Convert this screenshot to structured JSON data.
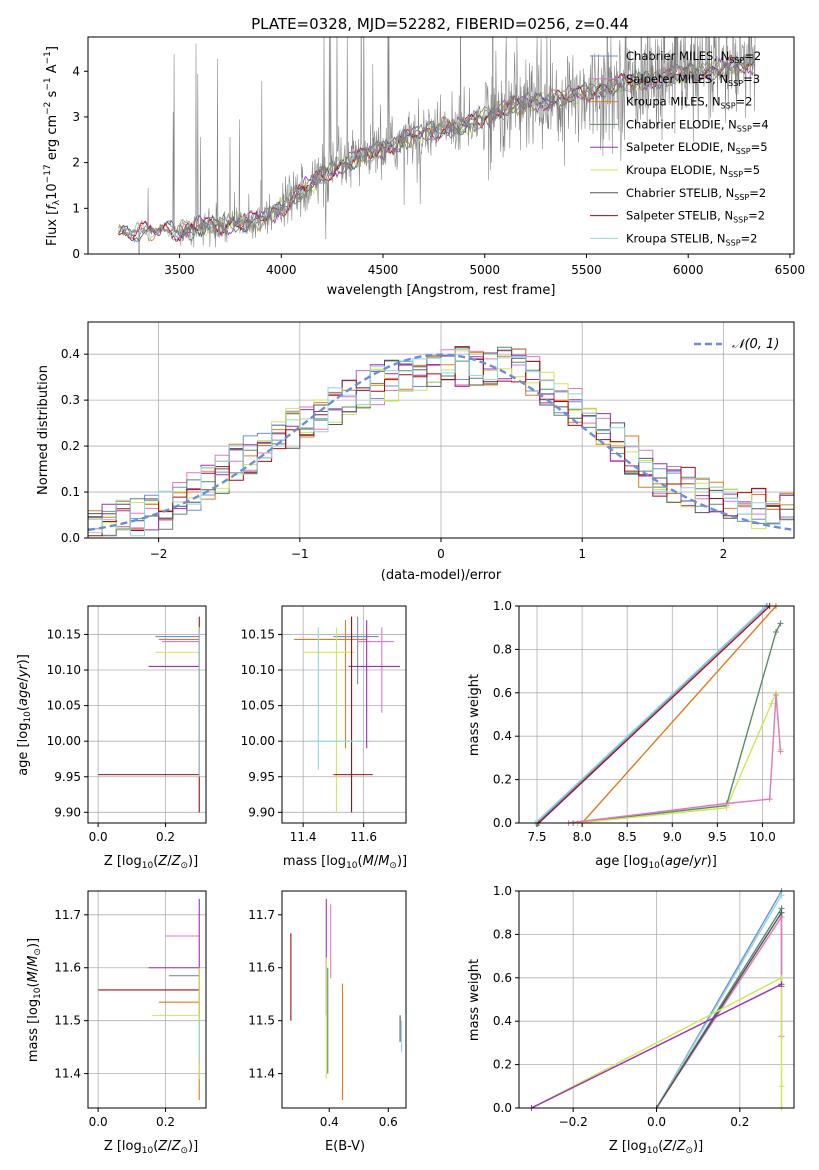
{
  "figure": {
    "title": "PLATE=0328, MJD=52282, FIBERID=0256, z=0.44"
  },
  "models": [
    {
      "label": "Chabrier MILES, N_SSP=2",
      "imf": "Chabrier",
      "lib": "MILES",
      "nssp": "2",
      "color": "#6f8fd6"
    },
    {
      "label": "Salpeter MILES, N_SSP=3",
      "imf": "Salpeter",
      "lib": "MILES",
      "nssp": "3",
      "color": "#e377c2"
    },
    {
      "label": "Kroupa MILES, N_SSP=2",
      "imf": "Kroupa",
      "lib": "MILES",
      "nssp": "2",
      "color": "#e07b20"
    },
    {
      "label": "Chabrier ELODIE, N_SSP=4",
      "imf": "Chabrier",
      "lib": "ELODIE",
      "nssp": "4",
      "color": "#5a8a6a"
    },
    {
      "label": "Salpeter ELODIE, N_SSP=5",
      "imf": "Salpeter",
      "lib": "ELODIE",
      "nssp": "5",
      "color": "#9b30b8"
    },
    {
      "label": "Kroupa ELODIE, N_SSP=5",
      "imf": "Kroupa",
      "lib": "ELODIE",
      "nssp": "5",
      "color": "#cde854"
    },
    {
      "label": "Chabrier STELIB, N_SSP=2",
      "imf": "Chabrier",
      "lib": "STELIB",
      "nssp": "2",
      "color": "#555555"
    },
    {
      "label": "Salpeter STELIB, N_SSP=2",
      "imf": "Salpeter",
      "lib": "STELIB",
      "nssp": "2",
      "color": "#a01010"
    },
    {
      "label": "Kroupa STELIB, N_SSP=2",
      "imf": "Kroupa",
      "lib": "STELIB",
      "nssp": "2",
      "color": "#8fd8e0"
    }
  ],
  "chart_data": [
    {
      "id": "spectrum",
      "type": "line",
      "xlabel": "wavelength [Angstrom, rest frame]",
      "ylabel": "Flux [f_λ 10^-17 erg cm^-2 s^-1 A^-1]",
      "xlim": [
        3050,
        6520
      ],
      "ylim": [
        0,
        4.75
      ],
      "xticks": [
        "3500",
        "4000",
        "4500",
        "5000",
        "5500",
        "6000",
        "6500"
      ],
      "yticks": [
        "0",
        "1",
        "2",
        "3",
        "4"
      ],
      "data_color": "#808080",
      "continuum": {
        "x": [
          3200,
          3300,
          3400,
          3500,
          3600,
          3700,
          3800,
          3900,
          4000,
          4100,
          4200,
          4300,
          4400,
          4500,
          4600,
          4700,
          4800,
          4900,
          5000,
          5100,
          5200,
          5300,
          5400,
          5500,
          5600,
          5700,
          5800,
          5900,
          6000,
          6100,
          6200,
          6300
        ],
        "y": [
          0.45,
          0.5,
          0.52,
          0.5,
          0.6,
          0.62,
          0.7,
          0.75,
          1.0,
          1.4,
          1.7,
          1.95,
          2.15,
          2.3,
          2.5,
          2.65,
          2.75,
          2.8,
          3.0,
          3.2,
          3.3,
          3.35,
          3.45,
          3.55,
          3.65,
          3.75,
          3.8,
          3.9,
          3.95,
          4.0,
          4.1,
          4.15
        ]
      },
      "legend_position": "upper right"
    },
    {
      "id": "residuals",
      "type": "line",
      "xlabel": "(data-model)/error",
      "ylabel": "Normed distribution",
      "xlim": [
        -2.5,
        2.5
      ],
      "ylim": [
        0,
        0.47
      ],
      "xticks": [
        "−2",
        "−1",
        "0",
        "1",
        "2"
      ],
      "yticks": [
        "0.0",
        "0.1",
        "0.2",
        "0.3",
        "0.4"
      ],
      "reference": {
        "label": "𝒩(0, 1)",
        "mean": 0,
        "sigma": 1,
        "color": "#6a8fd8"
      },
      "histogram_envelope": {
        "x": [
          -2.5,
          -2.0,
          -1.5,
          -1.0,
          -0.5,
          0.0,
          0.5,
          1.0,
          1.5,
          2.0,
          2.5
        ],
        "y": [
          0.03,
          0.05,
          0.15,
          0.25,
          0.33,
          0.37,
          0.38,
          0.28,
          0.14,
          0.08,
          0.05
        ]
      },
      "legend_position": "upper right",
      "grid": true
    },
    {
      "id": "age_vs_Z",
      "type": "scatter",
      "xlabel": "Z [log10(Z/Z☉)]",
      "ylabel": "age  [log10(age/yr)]",
      "xlim": [
        -0.03,
        0.32
      ],
      "ylim": [
        9.885,
        10.19
      ],
      "xticks": [
        "0.0",
        "0.2"
      ],
      "yticks": [
        "9.90",
        "9.95",
        "10.00",
        "10.05",
        "10.10",
        "10.15"
      ],
      "points": [
        {
          "model": 0,
          "x": 0.3,
          "y": 10.147,
          "xerr": [
            0.17,
            0.3
          ],
          "yerr": [
            10.147,
            10.147
          ]
        },
        {
          "model": 1,
          "x": 0.3,
          "y": 10.14,
          "xerr": [
            0.19,
            0.3
          ],
          "yerr": [
            10.14,
            10.14
          ]
        },
        {
          "model": 2,
          "x": 0.3,
          "y": 10.143,
          "xerr": [
            0.18,
            0.3
          ],
          "yerr": [
            10.143,
            10.143
          ]
        },
        {
          "model": 4,
          "x": 0.3,
          "y": 10.105,
          "xerr": [
            0.15,
            0.3
          ],
          "yerr": [
            10.105,
            10.105
          ]
        },
        {
          "model": 5,
          "x": 0.3,
          "y": 10.125,
          "xerr": [
            0.17,
            0.3
          ],
          "yerr": [
            10.125,
            10.125
          ]
        },
        {
          "model": 7,
          "x": 0.3,
          "y": 9.953,
          "xerr": [
            0.0,
            0.3
          ],
          "yerr": [
            9.9,
            10.175
          ]
        },
        {
          "model": 8,
          "x": 0.3,
          "y": 10.0,
          "xerr": [
            0.3,
            0.3
          ],
          "yerr": [
            9.95,
            10.16
          ]
        }
      ],
      "grid": true
    },
    {
      "id": "age_vs_mass",
      "type": "scatter",
      "xlabel": "mass [log10(M/M☉)]",
      "ylabel": "",
      "xlim": [
        11.33,
        11.74
      ],
      "ylim": [
        9.885,
        10.19
      ],
      "xticks": [
        "11.4",
        "11.6"
      ],
      "yticks": [
        "9.90",
        "9.95",
        "10.00",
        "10.05",
        "10.10",
        "10.15"
      ],
      "points": [
        {
          "model": 0,
          "x": 11.58,
          "y": 10.147,
          "xerr": [
            11.5,
            11.65
          ],
          "yerr": [
            10.08,
            10.175
          ]
        },
        {
          "model": 1,
          "x": 11.66,
          "y": 10.14,
          "xerr": [
            11.58,
            11.7
          ],
          "yerr": [
            10.04,
            10.16
          ]
        },
        {
          "model": 2,
          "x": 11.54,
          "y": 10.143,
          "xerr": [
            11.37,
            11.61
          ],
          "yerr": [
            9.99,
            10.17
          ]
        },
        {
          "model": 4,
          "x": 11.61,
          "y": 10.105,
          "xerr": [
            11.55,
            11.72
          ],
          "yerr": [
            9.99,
            10.17
          ]
        },
        {
          "model": 5,
          "x": 11.51,
          "y": 10.125,
          "xerr": [
            11.4,
            11.57
          ],
          "yerr": [
            9.9,
            10.16
          ]
        },
        {
          "model": 7,
          "x": 11.56,
          "y": 9.953,
          "xerr": [
            11.5,
            11.63
          ],
          "yerr": [
            9.9,
            10.175
          ]
        },
        {
          "model": 8,
          "x": 11.45,
          "y": 10.0,
          "xerr": [
            11.42,
            11.6
          ],
          "yerr": [
            9.96,
            10.16
          ]
        }
      ],
      "grid": true
    },
    {
      "id": "massweight_vs_age",
      "type": "line",
      "xlabel": "age  [log10(age/yr)]",
      "ylabel": "mass weight",
      "xlim": [
        7.3,
        10.35
      ],
      "ylim": [
        0,
        1.0
      ],
      "xticks": [
        "7.5",
        "8.0",
        "8.5",
        "9.0",
        "9.5",
        "10.0"
      ],
      "yticks": [
        "0.0",
        "0.2",
        "0.4",
        "0.6",
        "0.8",
        "1.0"
      ],
      "series": [
        {
          "model": 0,
          "x": [
            7.5,
            10.05
          ],
          "y": [
            0.0,
            1.0
          ]
        },
        {
          "model": 7,
          "x": [
            7.52,
            10.08
          ],
          "y": [
            0.0,
            1.0
          ]
        },
        {
          "model": 8,
          "x": [
            7.48,
            10.04
          ],
          "y": [
            0.0,
            1.0
          ]
        },
        {
          "model": 2,
          "x": [
            8.0,
            10.15
          ],
          "y": [
            0.0,
            1.0
          ]
        },
        {
          "model": 3,
          "x": [
            7.9,
            9.6,
            10.15,
            10.2
          ],
          "y": [
            0.0,
            0.08,
            0.88,
            0.92
          ]
        },
        {
          "model": 5,
          "x": [
            7.95,
            9.6,
            10.1,
            10.15,
            10.2
          ],
          "y": [
            0.0,
            0.07,
            0.55,
            0.6,
            0.34
          ]
        },
        {
          "model": 1,
          "x": [
            7.85,
            9.6,
            10.08,
            10.15,
            10.2
          ],
          "y": [
            0.0,
            0.09,
            0.11,
            0.59,
            0.33
          ]
        }
      ],
      "grid": true
    },
    {
      "id": "mass_vs_Z",
      "type": "scatter",
      "xlabel": "Z [log10(Z/Z☉)]",
      "ylabel": "mass [log10(M/M☉)]",
      "xlim": [
        -0.03,
        0.32
      ],
      "ylim": [
        11.335,
        11.745
      ],
      "xticks": [
        "0.0",
        "0.2"
      ],
      "yticks": [
        "11.4",
        "11.5",
        "11.6",
        "11.7"
      ],
      "points": [
        {
          "model": 1,
          "x": 0.3,
          "y": 11.66,
          "xerr": [
            0.2,
            0.3
          ],
          "yerr": [
            11.66,
            11.66
          ]
        },
        {
          "model": 4,
          "x": 0.3,
          "y": 11.6,
          "xerr": [
            0.15,
            0.3
          ],
          "yerr": [
            11.51,
            11.73
          ]
        },
        {
          "model": 0,
          "x": 0.3,
          "y": 11.585,
          "xerr": [
            0.21,
            0.3
          ],
          "yerr": [
            11.585,
            11.585
          ]
        },
        {
          "model": 7,
          "x": 0.3,
          "y": 11.558,
          "xerr": [
            0.0,
            0.3
          ],
          "yerr": [
            11.558,
            11.558
          ]
        },
        {
          "model": 2,
          "x": 0.3,
          "y": 11.535,
          "xerr": [
            0.18,
            0.3
          ],
          "yerr": [
            11.35,
            11.6
          ]
        },
        {
          "model": 5,
          "x": 0.3,
          "y": 11.51,
          "xerr": [
            0.16,
            0.3
          ],
          "yerr": [
            11.39,
            11.6
          ]
        },
        {
          "model": 8,
          "x": 0.3,
          "y": 11.45,
          "xerr": [
            0.3,
            0.3
          ],
          "yerr": [
            11.42,
            11.5
          ]
        }
      ],
      "grid": true
    },
    {
      "id": "mass_vs_ebv",
      "type": "scatter",
      "xlabel": "E(B-V)",
      "ylabel": "",
      "xlim": [
        0.24,
        0.66
      ],
      "ylim": [
        11.335,
        11.745
      ],
      "xticks": [
        "0.4",
        "0.6"
      ],
      "yticks": [
        "11.4",
        "11.5",
        "11.6",
        "11.7"
      ],
      "points": [
        {
          "model": 7,
          "x": 0.27,
          "y": 11.58,
          "yerr": [
            11.5,
            11.665
          ]
        },
        {
          "model": 4,
          "x": 0.39,
          "y": 11.6,
          "yerr": [
            11.51,
            11.73
          ]
        },
        {
          "model": 1,
          "x": 0.405,
          "y": 11.66,
          "yerr": [
            11.58,
            11.72
          ]
        },
        {
          "model": 5,
          "x": 0.39,
          "y": 11.51,
          "yerr": [
            11.39,
            11.62
          ]
        },
        {
          "model": 3,
          "x": 0.395,
          "y": 11.52,
          "yerr": [
            11.4,
            11.6
          ]
        },
        {
          "model": 2,
          "x": 0.445,
          "y": 11.46,
          "yerr": [
            11.35,
            11.57
          ]
        },
        {
          "model": 8,
          "x": 0.645,
          "y": 11.47,
          "yerr": [
            11.44,
            11.5
          ]
        },
        {
          "model": 6,
          "x": 0.64,
          "y": 11.48,
          "yerr": [
            11.46,
            11.51
          ]
        }
      ],
      "grid": false
    },
    {
      "id": "massweight_vs_Z",
      "type": "line",
      "xlabel": "Z [log10(Z/Z☉)]",
      "ylabel": "mass weight",
      "xlim": [
        -0.33,
        0.33
      ],
      "ylim": [
        0,
        1.0
      ],
      "xticks": [
        "−0.2",
        "0.0",
        "0.2"
      ],
      "yticks": [
        "0.0",
        "0.2",
        "0.4",
        "0.6",
        "0.8",
        "1.0"
      ],
      "series": [
        {
          "model": 0,
          "x": [
            0.0,
            0.3
          ],
          "y": [
            0.0,
            1.0
          ]
        },
        {
          "model": 8,
          "x": [
            0.0,
            0.3
          ],
          "y": [
            0.0,
            0.98
          ]
        },
        {
          "model": 3,
          "x": [
            0.0,
            0.3,
            0.3
          ],
          "y": [
            0.0,
            0.92,
            0.56
          ]
        },
        {
          "model": 1,
          "x": [
            0.0,
            0.3,
            0.3
          ],
          "y": [
            0.0,
            0.88,
            0.33
          ]
        },
        {
          "model": 6,
          "x": [
            0.0,
            0.3
          ],
          "y": [
            0.0,
            0.9
          ]
        },
        {
          "model": 5,
          "x": [
            -0.3,
            0.3,
            0.3,
            0.3
          ],
          "y": [
            0.0,
            0.6,
            0.1,
            0.0
          ]
        },
        {
          "model": 4,
          "x": [
            -0.3,
            0.3
          ],
          "y": [
            0.0,
            0.57
          ]
        }
      ],
      "grid": true
    }
  ]
}
